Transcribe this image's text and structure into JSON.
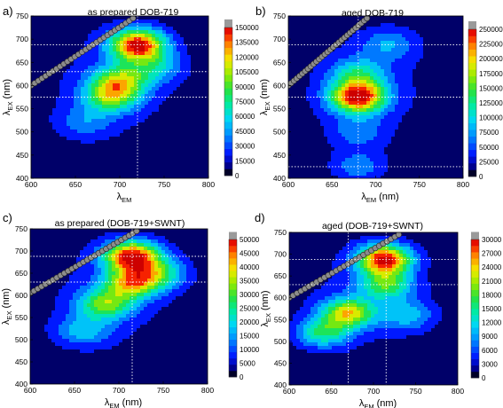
{
  "chart_data": [
    {
      "type": "heatmap",
      "panel_label": "a)",
      "title": "as prepared DOB-719",
      "xlabel": {
        "main": "λ",
        "sub": "EM",
        "unit": ""
      },
      "ylabel": {
        "main": "λ",
        "sub": "EX",
        "unit": "(nm)"
      },
      "xlim": [
        600,
        800
      ],
      "ylim": [
        400,
        750
      ],
      "xticks": [
        "600",
        "650",
        "700",
        "750",
        "800"
      ],
      "yticks": [
        "400",
        "450",
        "500",
        "550",
        "600",
        "650",
        "700",
        "750"
      ],
      "colorbar_ticks": [
        "0",
        "15000",
        "30000",
        "45000",
        "60000",
        "75000",
        "90000",
        "105000",
        "120000",
        "135000",
        "150000"
      ],
      "zmax": 155000,
      "guide_lines": {
        "x": [
          720
        ],
        "y": [
          575,
          630,
          688
        ]
      },
      "peaks": [
        {
          "x": 720,
          "y": 688,
          "z": 150000
        },
        {
          "x": 700,
          "y": 610,
          "z": 85000
        },
        {
          "x": 690,
          "y": 575,
          "z": 80000
        },
        {
          "x": 740,
          "y": 640,
          "z": 45000
        },
        {
          "x": 660,
          "y": 520,
          "z": 30000
        }
      ],
      "scatter_line": {
        "from": [
          600,
          600
        ],
        "to": [
          715,
          745
        ]
      }
    },
    {
      "type": "heatmap",
      "panel_label": "b)",
      "title": "aged DOB-719",
      "xlabel": {
        "main": "λ",
        "sub": "EM",
        "unit": "(nm)"
      },
      "ylabel": {
        "main": "λ",
        "sub": "EX",
        "unit": "(nm)"
      },
      "xlim": [
        600,
        800
      ],
      "ylim": [
        400,
        750
      ],
      "xticks": [
        "600",
        "650",
        "700",
        "750",
        "800"
      ],
      "yticks": [
        "400",
        "450",
        "500",
        "550",
        "600",
        "650",
        "700",
        "750"
      ],
      "colorbar_ticks": [
        "0",
        "25000",
        "50000",
        "75000",
        "100000",
        "125000",
        "150000",
        "175000",
        "200000",
        "225000",
        "250000"
      ],
      "zmax": 258000,
      "guide_lines": {
        "x": [
          680
        ],
        "y": [
          425,
          575,
          688
        ]
      },
      "peaks": [
        {
          "x": 680,
          "y": 575,
          "z": 250000
        },
        {
          "x": 680,
          "y": 625,
          "z": 90000
        },
        {
          "x": 715,
          "y": 688,
          "z": 60000
        },
        {
          "x": 680,
          "y": 425,
          "z": 60000
        },
        {
          "x": 680,
          "y": 500,
          "z": 50000
        }
      ],
      "scatter_line": {
        "from": [
          600,
          600
        ],
        "to": [
          690,
          745
        ]
      }
    },
    {
      "type": "heatmap",
      "panel_label": "c)",
      "title": "as prepared (DOB-719+SWNT)",
      "xlabel": {
        "main": "λ",
        "sub": "EM",
        "unit": "(nm)"
      },
      "ylabel": {
        "main": "λ",
        "sub": "EX",
        "unit": "(nm)"
      },
      "xlim": [
        600,
        800
      ],
      "ylim": [
        400,
        750
      ],
      "xticks": [
        "600",
        "650",
        "700",
        "750",
        "800"
      ],
      "yticks": [
        "400",
        "450",
        "500",
        "550",
        "600",
        "650",
        "700",
        "750"
      ],
      "colorbar_ticks": [
        "0",
        "5000",
        "10000",
        "15000",
        "20000",
        "25000",
        "30000",
        "35000",
        "40000",
        "45000",
        "50000"
      ],
      "zmax": 52000,
      "guide_lines": {
        "x": [
          715
        ],
        "y": [
          630,
          688
        ]
      },
      "peaks": [
        {
          "x": 715,
          "y": 688,
          "z": 50000
        },
        {
          "x": 715,
          "y": 628,
          "z": 35000
        },
        {
          "x": 685,
          "y": 580,
          "z": 28000
        },
        {
          "x": 745,
          "y": 650,
          "z": 20000
        },
        {
          "x": 660,
          "y": 520,
          "z": 15000
        }
      ],
      "scatter_line": {
        "from": [
          600,
          605
        ],
        "to": [
          720,
          745
        ]
      }
    },
    {
      "type": "heatmap",
      "panel_label": "d)",
      "title": "aged (DOB-719+SWNT)",
      "xlabel": {
        "main": "λ",
        "sub": "EM",
        "unit": "(nm)"
      },
      "ylabel": {
        "main": "λ",
        "sub": "EX",
        "unit": "(nm)"
      },
      "xlim": [
        600,
        800
      ],
      "ylim": [
        400,
        750
      ],
      "xticks": [
        "600",
        "650",
        "700",
        "750",
        "800"
      ],
      "yticks": [
        "400",
        "450",
        "500",
        "550",
        "600",
        "650",
        "700",
        "750"
      ],
      "colorbar_ticks": [
        "0",
        "3000",
        "6000",
        "9000",
        "12000",
        "15000",
        "18000",
        "21000",
        "24000",
        "27000",
        "30000"
      ],
      "zmax": 31000,
      "guide_lines": {
        "x": [
          670,
          715
        ],
        "y": [
          630,
          688
        ]
      },
      "peaks": [
        {
          "x": 713,
          "y": 688,
          "z": 30000
        },
        {
          "x": 670,
          "y": 565,
          "z": 21000
        },
        {
          "x": 715,
          "y": 630,
          "z": 15000
        },
        {
          "x": 640,
          "y": 520,
          "z": 14000
        },
        {
          "x": 740,
          "y": 560,
          "z": 9000
        }
      ],
      "scatter_line": {
        "from": [
          600,
          600
        ],
        "to": [
          730,
          745
        ]
      }
    }
  ]
}
